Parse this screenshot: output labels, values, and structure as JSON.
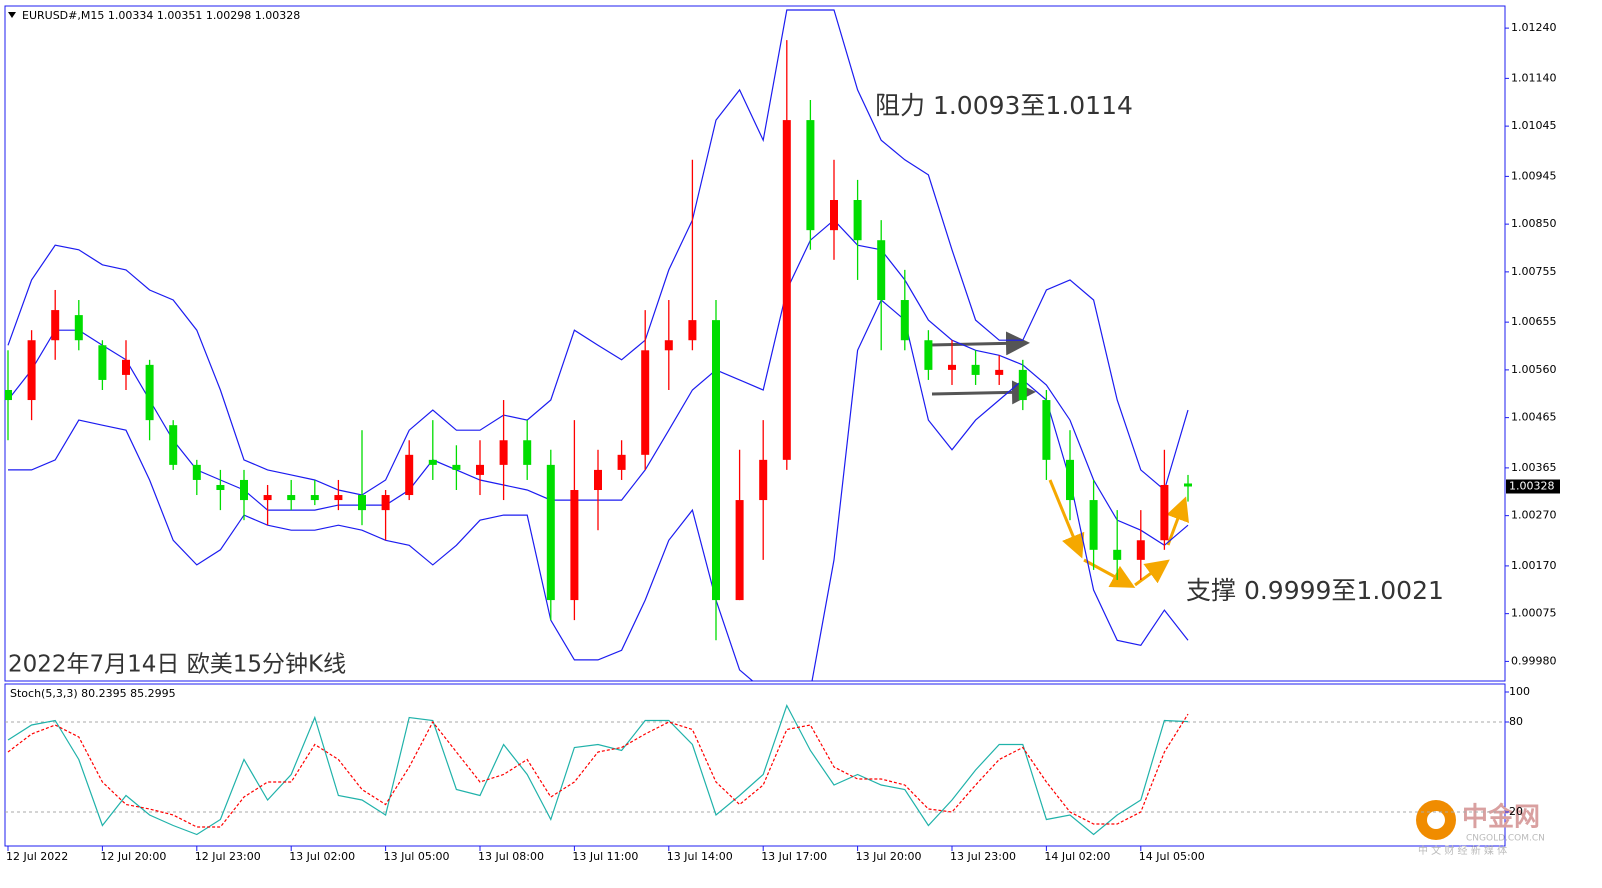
{
  "chart_data": {
    "type": "candlestick",
    "header": "EURUSD#,M15  1.00334 1.00351 1.00298 1.00328",
    "title": "2022年7月14日 欧美15分钟K线",
    "annotations": [
      "阻力 1.0093至1.0114",
      "支撑 0.9999至1.0021"
    ],
    "categories": [
      "12 Jul 2022",
      null,
      null,
      null,
      "12 Jul 20:00",
      null,
      null,
      null,
      "12 Jul 23:00",
      null,
      null,
      null,
      "13 Jul 02:00",
      null,
      null,
      null,
      "13 Jul 05:00",
      null,
      null,
      null,
      "13 Jul 08:00",
      null,
      null,
      null,
      "13 Jul 11:00",
      null,
      null,
      null,
      "13 Jul 14:00",
      null,
      null,
      null,
      "13 Jul 17:00",
      null,
      null,
      null,
      "13 Jul 20:00",
      null,
      null,
      null,
      "13 Jul 23:00",
      null,
      null,
      null,
      "14 Jul 02:00",
      null,
      null,
      null,
      "14 Jul 05:00",
      null,
      null
    ],
    "open": [
      1.0052,
      1.005,
      1.00619,
      1.00669,
      1.00609,
      1.0055,
      1.0057,
      1.0045,
      1.00371,
      1.00331,
      1.00341,
      1.00301,
      1.00311,
      1.00311,
      1.00301,
      1.00311,
      1.00281,
      1.00311,
      1.00381,
      1.00371,
      1.00351,
      1.00371,
      1.0042,
      1.00371,
      1.00102,
      1.00321,
      1.00361,
      1.00391,
      1.00599,
      1.00619,
      1.00659,
      1.00102,
      1.00301,
      1.00381,
      1.01057,
      1.00838,
      1.00898,
      1.00818,
      1.00699,
      1.00619,
      1.0056,
      1.0057,
      1.0055,
      1.0056,
      1.005,
      1.00381,
      1.00301,
      1.00202,
      1.00182,
      1.00221,
      1.00334
    ],
    "high": [
      1.00599,
      1.00639,
      1.00719,
      1.00699,
      1.00619,
      1.00619,
      1.0058,
      1.0046,
      1.00381,
      1.00361,
      1.00361,
      1.00331,
      1.00341,
      1.00341,
      1.00341,
      1.0044,
      1.00321,
      1.0042,
      1.0046,
      1.0041,
      1.0042,
      1.005,
      1.0046,
      1.00401,
      1.0046,
      1.00401,
      1.0042,
      1.00679,
      1.00699,
      1.00978,
      1.00699,
      1.00401,
      1.0046,
      1.01216,
      1.01097,
      1.00978,
      1.00938,
      1.00858,
      1.00759,
      1.00639,
      1.00619,
      1.00599,
      1.00589,
      1.0058,
      1.0052,
      1.0044,
      1.00341,
      1.00281,
      1.00281,
      1.00401,
      1.00351
    ],
    "low": [
      1.0042,
      1.0046,
      1.0058,
      1.00599,
      1.0052,
      1.0052,
      1.0042,
      1.00361,
      1.00311,
      1.00281,
      1.00261,
      1.00251,
      1.00281,
      1.00291,
      1.00281,
      1.00251,
      1.00221,
      1.00301,
      1.00341,
      1.00321,
      1.00311,
      1.00301,
      1.00341,
      1.00062,
      1.00062,
      1.00241,
      1.00341,
      1.00361,
      1.0052,
      1.00599,
      1.00022,
      1.00102,
      1.00182,
      1.00361,
      1.00799,
      1.00779,
      1.00739,
      1.00599,
      1.00599,
      1.0054,
      1.0053,
      1.0053,
      1.0053,
      1.0048,
      1.00341,
      1.00261,
      1.00162,
      1.00142,
      1.00142,
      1.00202,
      1.00298
    ],
    "close": [
      1.005,
      1.00619,
      1.00679,
      1.00619,
      1.0054,
      1.0058,
      1.0046,
      1.00371,
      1.00341,
      1.00321,
      1.00301,
      1.00311,
      1.00301,
      1.00301,
      1.00311,
      1.00281,
      1.00311,
      1.00391,
      1.00371,
      1.00361,
      1.00371,
      1.0042,
      1.00371,
      1.00102,
      1.00321,
      1.00361,
      1.00391,
      1.00599,
      1.00619,
      1.00659,
      1.00102,
      1.00301,
      1.00381,
      1.01057,
      1.00838,
      1.00898,
      1.00818,
      1.00699,
      1.00619,
      1.0056,
      1.0057,
      1.0055,
      1.0056,
      1.005,
      1.00381,
      1.00301,
      1.00202,
      1.00182,
      1.00221,
      1.00331,
      1.00328
    ],
    "up_color": "#ff0000",
    "down_color": "#00dd00",
    "bands": {
      "color": "#1c1cf0",
      "upper": [
        1.00609,
        1.00739,
        1.00808,
        1.00799,
        1.00769,
        1.00759,
        1.00719,
        1.00699,
        1.00639,
        1.0052,
        1.00381,
        1.00361,
        1.00351,
        1.00341,
        1.00321,
        1.00311,
        1.00341,
        1.0044,
        1.0048,
        1.0044,
        1.0044,
        1.0047,
        1.0046,
        1.005,
        1.00639,
        1.00609,
        1.0058,
        1.00619,
        1.00759,
        1.00858,
        1.01057,
        1.01117,
        1.01017,
        1.01276,
        1.01276,
        1.01276,
        1.01117,
        1.01017,
        1.00978,
        1.00948,
        1.00799,
        1.00659,
        1.00619,
        1.00619,
        1.00719,
        1.00739,
        1.00699,
        1.005,
        1.00361,
        1.00321,
        1.0048
      ],
      "middle": [
        1.005,
        1.0056,
        1.00639,
        1.00639,
        1.00609,
        1.0058,
        1.005,
        1.0042,
        1.00361,
        1.00341,
        1.00321,
        1.00281,
        1.00281,
        1.00281,
        1.00291,
        1.00291,
        1.00291,
        1.00321,
        1.00381,
        1.00361,
        1.00341,
        1.00331,
        1.00321,
        1.00301,
        1.00301,
        1.00301,
        1.00301,
        1.00361,
        1.0044,
        1.0052,
        1.0056,
        1.0054,
        1.0052,
        1.00719,
        1.00818,
        1.00858,
        1.00808,
        1.00799,
        1.00739,
        1.00659,
        1.00619,
        1.00599,
        1.00589,
        1.0057,
        1.0053,
        1.0046,
        1.00341,
        1.00261,
        1.00241,
        1.00211,
        1.00251
      ],
      "lower": [
        1.00361,
        1.00361,
        1.00381,
        1.0046,
        1.0045,
        1.0044,
        1.00341,
        1.00221,
        1.00172,
        1.00202,
        1.00271,
        1.00251,
        1.00241,
        1.00241,
        1.00251,
        1.00241,
        1.00221,
        1.00211,
        1.00172,
        1.00211,
        1.00261,
        1.00271,
        1.00271,
        1.00062,
        0.99983,
        0.99983,
        1.00002,
        1.00102,
        1.00221,
        1.00281,
        1.00102,
        0.99963,
        0.99923,
        0.99923,
        0.99923,
        1.00182,
        1.00599,
        1.00699,
        1.00659,
        1.0046,
        1.00401,
        1.0046,
        1.005,
        1.0054,
        1.005,
        1.00341,
        1.00122,
        1.00022,
        1.00012,
        1.00082,
        1.00022
      ]
    },
    "ylim": [
      0.99941,
      1.01284
    ],
    "yticks": [
      {
        "value": 1.0124,
        "label": "1.01240"
      },
      {
        "value": 1.0114,
        "label": "1.01140"
      },
      1.01045,
      1.00945,
      {
        "value": 1.0085,
        "label": "1.00850"
      },
      1.00755,
      1.00655,
      {
        "value": 1.0056,
        "label": "1.00560"
      },
      1.00465,
      1.00365,
      {
        "value": 1.0027,
        "label": "1.00270"
      },
      {
        "value": 1.0017,
        "label": "1.00170"
      },
      1.00075,
      {
        "value": 0.9998,
        "label": "0.99980"
      }
    ],
    "current_price": 1.00328,
    "indicator": {
      "type": "line",
      "label": "Stoch(5,3,3)",
      "ylim": [
        0,
        100
      ],
      "yticks": [
        100,
        80,
        20
      ],
      "series": [
        {
          "color": "#20b2aa",
          "values": [
            68,
            78,
            81,
            55,
            11,
            31,
            18,
            11,
            5,
            15,
            55,
            28,
            45,
            83,
            31,
            28,
            18,
            83,
            81,
            35,
            31,
            65,
            45,
            15,
            63,
            65,
            61,
            81,
            81,
            65,
            18,
            31,
            45,
            91,
            61,
            38,
            45,
            38,
            35,
            11,
            28,
            48,
            65,
            65,
            15,
            18,
            5,
            18,
            28,
            81,
            80.2395
          ]
        },
        {
          "color": "#ff0000",
          "dashed": true,
          "values": [
            60,
            72,
            78,
            70,
            40,
            25,
            22,
            18,
            10,
            10,
            30,
            40,
            40,
            65,
            55,
            35,
            25,
            50,
            80,
            60,
            40,
            45,
            55,
            30,
            40,
            60,
            63,
            72,
            80,
            75,
            40,
            25,
            38,
            75,
            78,
            50,
            42,
            42,
            38,
            22,
            20,
            38,
            55,
            63,
            40,
            20,
            12,
            12,
            20,
            60,
            85.2995
          ]
        }
      ]
    },
    "watermark": {
      "name": "中金网",
      "site": "CNGOLD.COM.CN",
      "tagline": "中 文 财 经 新 媒 体"
    }
  }
}
